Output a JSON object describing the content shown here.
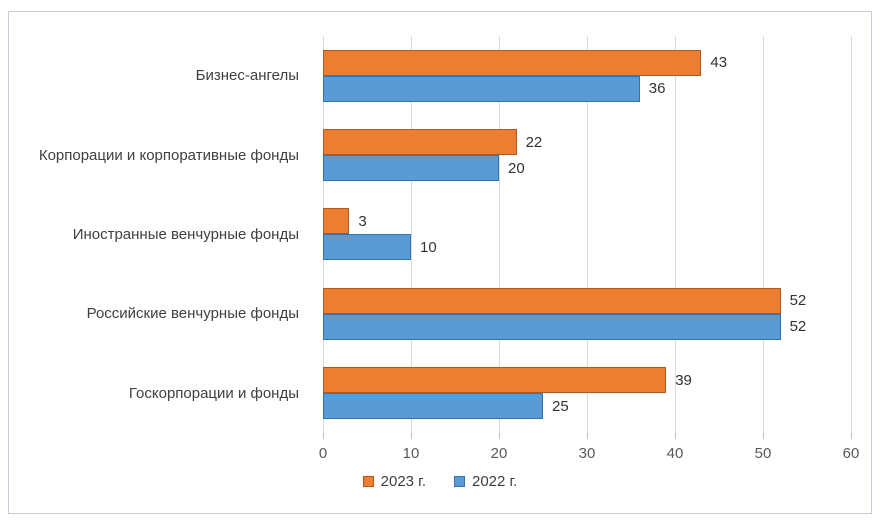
{
  "chart_data": {
    "type": "bar",
    "orientation": "horizontal",
    "title": "",
    "categories": [
      "Бизнес-ангелы",
      "Корпорации и корпоративные фонды",
      "Иностранные венчурные фонды",
      "Российские венчурные фонды",
      "Госкорпорации и фонды"
    ],
    "series": [
      {
        "name": "2023 г.",
        "color": "#ED7D31",
        "border_color": "#AE5A21",
        "values": [
          43,
          22,
          3,
          52,
          39
        ]
      },
      {
        "name": "2022 г.",
        "color": "#5B9BD5",
        "border_color": "#2E75B6",
        "values": [
          36,
          20,
          10,
          52,
          25
        ]
      }
    ],
    "x_axis": {
      "min": 0,
      "max": 60,
      "ticks": [
        0,
        10,
        20,
        30,
        40,
        50,
        60
      ]
    },
    "data_labels": true,
    "gridlines": true,
    "legend_position": "bottom"
  },
  "styles": {
    "gridline_color": "#D9D9D9",
    "tick_color": "#BFBFBF",
    "frame_border_color": "#C6CCD8",
    "axis_text_color": "#595959",
    "category_text_color": "#404040",
    "data_label_color": "#333333",
    "background": "#FFFFFF"
  }
}
